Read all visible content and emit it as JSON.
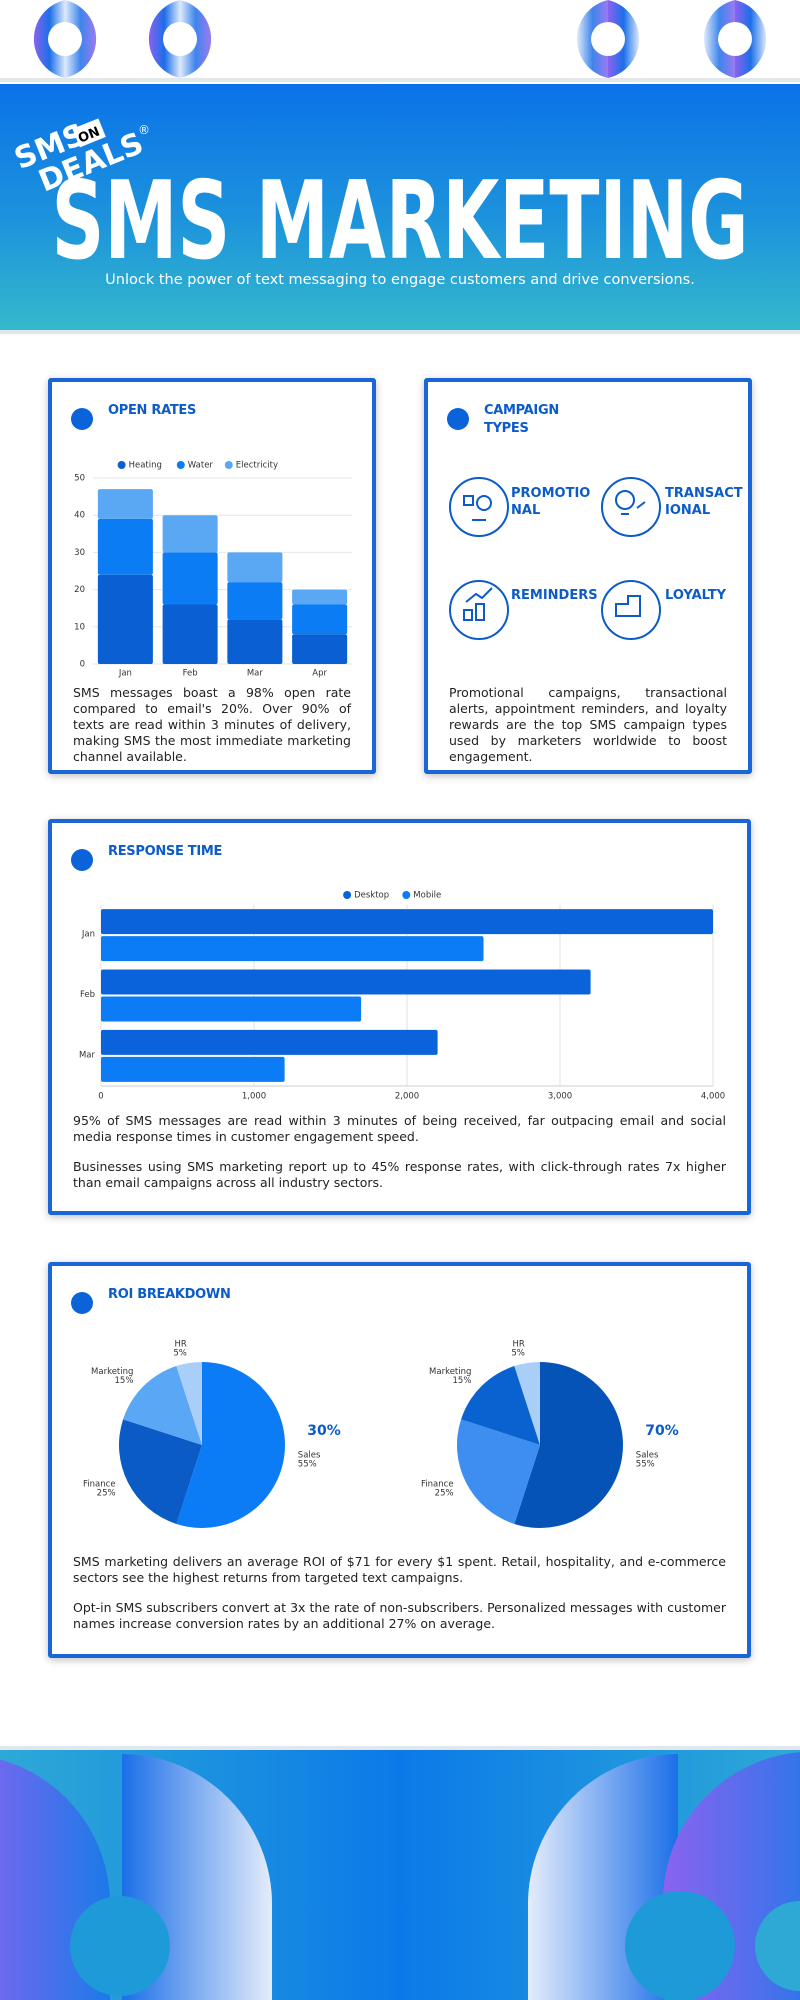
{
  "header": {
    "logo": [
      "SMS",
      "DEALS",
      "ON",
      "®"
    ],
    "title": "SMS MARKETING",
    "subtitle": "Unlock the power of text messaging to engage customers and drive conversions."
  },
  "cards": [
    {
      "title": "OPEN RATES",
      "paragraphs": [
        "SMS messages boast a 98% open rate compared to email's 20%. Over 90% of texts are read within 3 minutes of delivery, making SMS the most immediate marketing channel available."
      ]
    },
    {
      "title": "CAMPAIGN TYPES",
      "items": [
        "PROMOTIONAL",
        "TRANSACTIONAL",
        "REMINDERS",
        "LOYALTY"
      ],
      "paragraphs": [
        "Promotional campaigns, transactional alerts, appointment reminders, and loyalty rewards are the top SMS campaign types used by marketers worldwide to boost engagement."
      ]
    },
    {
      "title": "RESPONSE TIME",
      "paragraphs": [
        "95% of SMS messages are read within 3 minutes of being received, far outpacing email and social media response times in customer engagement speed.",
        "Businesses using SMS marketing report up to 45% response rates, with click-through rates 7x higher than email campaigns across all industry sectors."
      ]
    },
    {
      "title": "ROI BREAKDOWN",
      "paragraphs": [
        "SMS marketing delivers an average ROI of $71 for every $1 spent. Retail, hospitality, and e-commerce sectors see the highest returns from targeted text campaigns.",
        "Opt-in SMS subscribers convert at 3x the rate of non-subscribers. Personalized messages with customer names increase conversion rates by an additional 27% on average."
      ]
    }
  ],
  "chart_data": [
    {
      "type": "bar",
      "stacked": true,
      "categories": [
        "Jan",
        "Feb",
        "Mar",
        "Apr"
      ],
      "series": [
        {
          "name": "Heating",
          "color": "#0a5fd2",
          "values": [
            24,
            16,
            12,
            8
          ]
        },
        {
          "name": "Water",
          "color": "#0b7cf3",
          "values": [
            15,
            14,
            10,
            8
          ]
        },
        {
          "name": "Electricity",
          "color": "#5aa8f4",
          "values": [
            8,
            10,
            8,
            4
          ]
        }
      ],
      "ylim": [
        0,
        50
      ],
      "yticks": [
        0,
        10,
        20,
        30,
        40,
        50
      ],
      "grid": true,
      "legend": "top"
    },
    {
      "type": "bar",
      "orientation": "horizontal",
      "categories": [
        "Jan",
        "Feb",
        "Mar"
      ],
      "series": [
        {
          "name": "Desktop",
          "color": "#0a63da",
          "values": [
            4000,
            3200,
            2200
          ]
        },
        {
          "name": "Mobile",
          "color": "#0b7cf5",
          "values": [
            2500,
            1700,
            1200
          ]
        }
      ],
      "xlim": [
        0,
        4000
      ],
      "xticks": [
        0,
        {
          "value": 1000,
          "label": "1,000"
        },
        {
          "value": 2000,
          "label": "2,000"
        },
        {
          "value": 3000,
          "label": "3,000"
        },
        {
          "value": 4000,
          "label": "4,000"
        }
      ],
      "grid": true,
      "legend": "top"
    },
    {
      "type": "pie",
      "categories": [
        "Sales",
        "Finance",
        "Marketing",
        "HR"
      ],
      "values": [
        55,
        25,
        15,
        5
      ],
      "value_labels": [
        "55%",
        "25%",
        "15%",
        "5%"
      ],
      "colors": [
        "#0b7cf5",
        "#0a5bc5",
        "#5aa7f5",
        "#a9cef8"
      ],
      "annotation": "30%"
    },
    {
      "type": "pie",
      "categories": [
        "Sales",
        "Finance",
        "Marketing",
        "HR"
      ],
      "values": [
        55,
        25,
        15,
        5
      ],
      "value_labels": [
        "55%",
        "25%",
        "15%",
        "5%"
      ],
      "colors": [
        "#0653b8",
        "#3d8ef0",
        "#0a62d0",
        "#a9cef8"
      ],
      "annotation": "70%"
    }
  ]
}
